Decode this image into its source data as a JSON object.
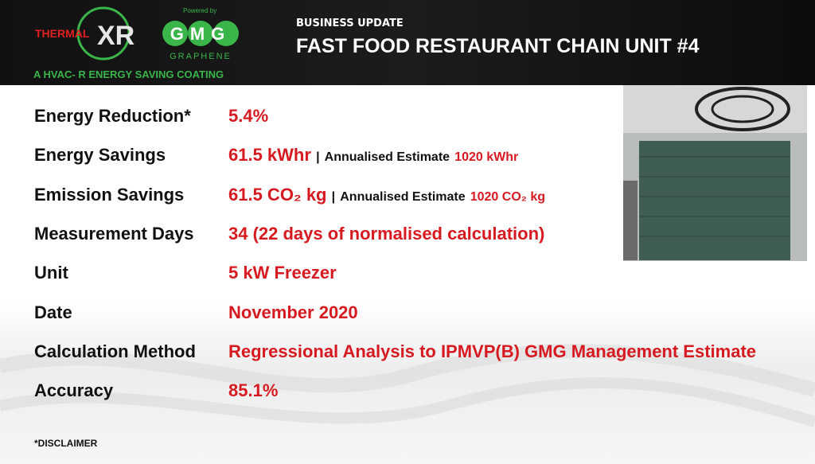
{
  "header": {
    "logo": {
      "thermal": "THERMAL",
      "xr": "XR",
      "powered_by": "Powered by",
      "gmg": "GMG",
      "graphene": "GRAPHENE",
      "tagline": "A HVAC- R ENERGY SAVING COATING"
    },
    "kicker": "BUSINESS UPDATE",
    "title": "FAST FOOD RESTAURANT CHAIN UNIT #4"
  },
  "rows": [
    {
      "label": "Energy Reduction*",
      "value": "5.4%"
    },
    {
      "label": "Energy Savings",
      "value": "61.5 kWhr",
      "separator": "|",
      "note": "Annualised Estimate",
      "note_value": "1020 kWhr"
    },
    {
      "label": "Emission Savings",
      "value": "61.5 CO₂ kg",
      "separator": "|",
      "note": "Annualised Estimate",
      "note_value": "1020 CO₂ kg"
    },
    {
      "label": "Measurement Days",
      "value": "34 (22 days of normalised calculation)"
    },
    {
      "label": "Unit",
      "value": "5 kW Freezer"
    },
    {
      "label": "Date",
      "value": "November 2020"
    },
    {
      "label": "Calculation Method",
      "value": "Regressional Analysis to IPMVP(B) GMG Management Estimate"
    },
    {
      "label": "Accuracy",
      "value": "85.1%"
    }
  ],
  "footer": {
    "disclaimer": "*DISCLAIMER"
  }
}
